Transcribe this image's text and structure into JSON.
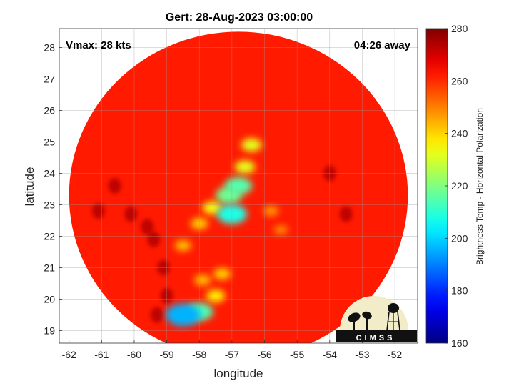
{
  "chart_data": {
    "type": "heatmap",
    "title": "Gert: 28-Aug-2023 03:00:00",
    "annotations": {
      "vmax": "Vmax: 28 kts",
      "time_away": "04:26 away"
    },
    "xlabel": "longitude",
    "ylabel": "latitude",
    "xlim": [
      -62.3,
      -51.3
    ],
    "ylim": [
      18.6,
      28.6
    ],
    "xticks": [
      -62,
      -61,
      -60,
      -59,
      -58,
      -57,
      -56,
      -55,
      -54,
      -53,
      -52
    ],
    "yticks": [
      19,
      20,
      21,
      22,
      23,
      24,
      25,
      26,
      27,
      28
    ],
    "grid": true,
    "colorbar": {
      "label": "Brightness Temp - Horizontal Polarization",
      "range": [
        160,
        280
      ],
      "ticks": [
        160,
        180,
        200,
        220,
        240,
        260,
        280
      ],
      "colormap": "jet"
    },
    "swath": {
      "center_lon": -56.8,
      "center_lat": 23.3,
      "radius_deg": 5.2,
      "background_value": 262
    },
    "features": [
      {
        "lon": -57.0,
        "lat": 22.7,
        "value": 208
      },
      {
        "lon": -57.1,
        "lat": 23.3,
        "value": 218
      },
      {
        "lon": -56.8,
        "lat": 23.6,
        "value": 215
      },
      {
        "lon": -56.6,
        "lat": 24.2,
        "value": 232
      },
      {
        "lon": -56.4,
        "lat": 24.9,
        "value": 232
      },
      {
        "lon": -57.6,
        "lat": 22.9,
        "value": 234
      },
      {
        "lon": -58.0,
        "lat": 22.4,
        "value": 240
      },
      {
        "lon": -58.5,
        "lat": 21.7,
        "value": 242
      },
      {
        "lon": -57.3,
        "lat": 20.8,
        "value": 240
      },
      {
        "lon": -57.9,
        "lat": 20.6,
        "value": 242
      },
      {
        "lon": -57.5,
        "lat": 20.1,
        "value": 236
      },
      {
        "lon": -58.5,
        "lat": 19.5,
        "value": 196
      },
      {
        "lon": -58.0,
        "lat": 19.6,
        "value": 214
      },
      {
        "lon": -55.8,
        "lat": 22.8,
        "value": 246
      },
      {
        "lon": -55.5,
        "lat": 22.2,
        "value": 248
      }
    ],
    "warm_spots": [
      {
        "lon": -59.6,
        "lat": 22.3
      },
      {
        "lon": -59.4,
        "lat": 21.9
      },
      {
        "lon": -59.1,
        "lat": 21.0
      },
      {
        "lon": -59.0,
        "lat": 20.1
      },
      {
        "lon": -59.3,
        "lat": 19.5
      },
      {
        "lon": -60.1,
        "lat": 22.7
      },
      {
        "lon": -60.6,
        "lat": 23.6
      },
      {
        "lon": -61.1,
        "lat": 22.8
      },
      {
        "lon": -54.0,
        "lat": 24.0
      },
      {
        "lon": -53.5,
        "lat": 22.7
      }
    ]
  },
  "logo": {
    "text": "CIMSS"
  }
}
